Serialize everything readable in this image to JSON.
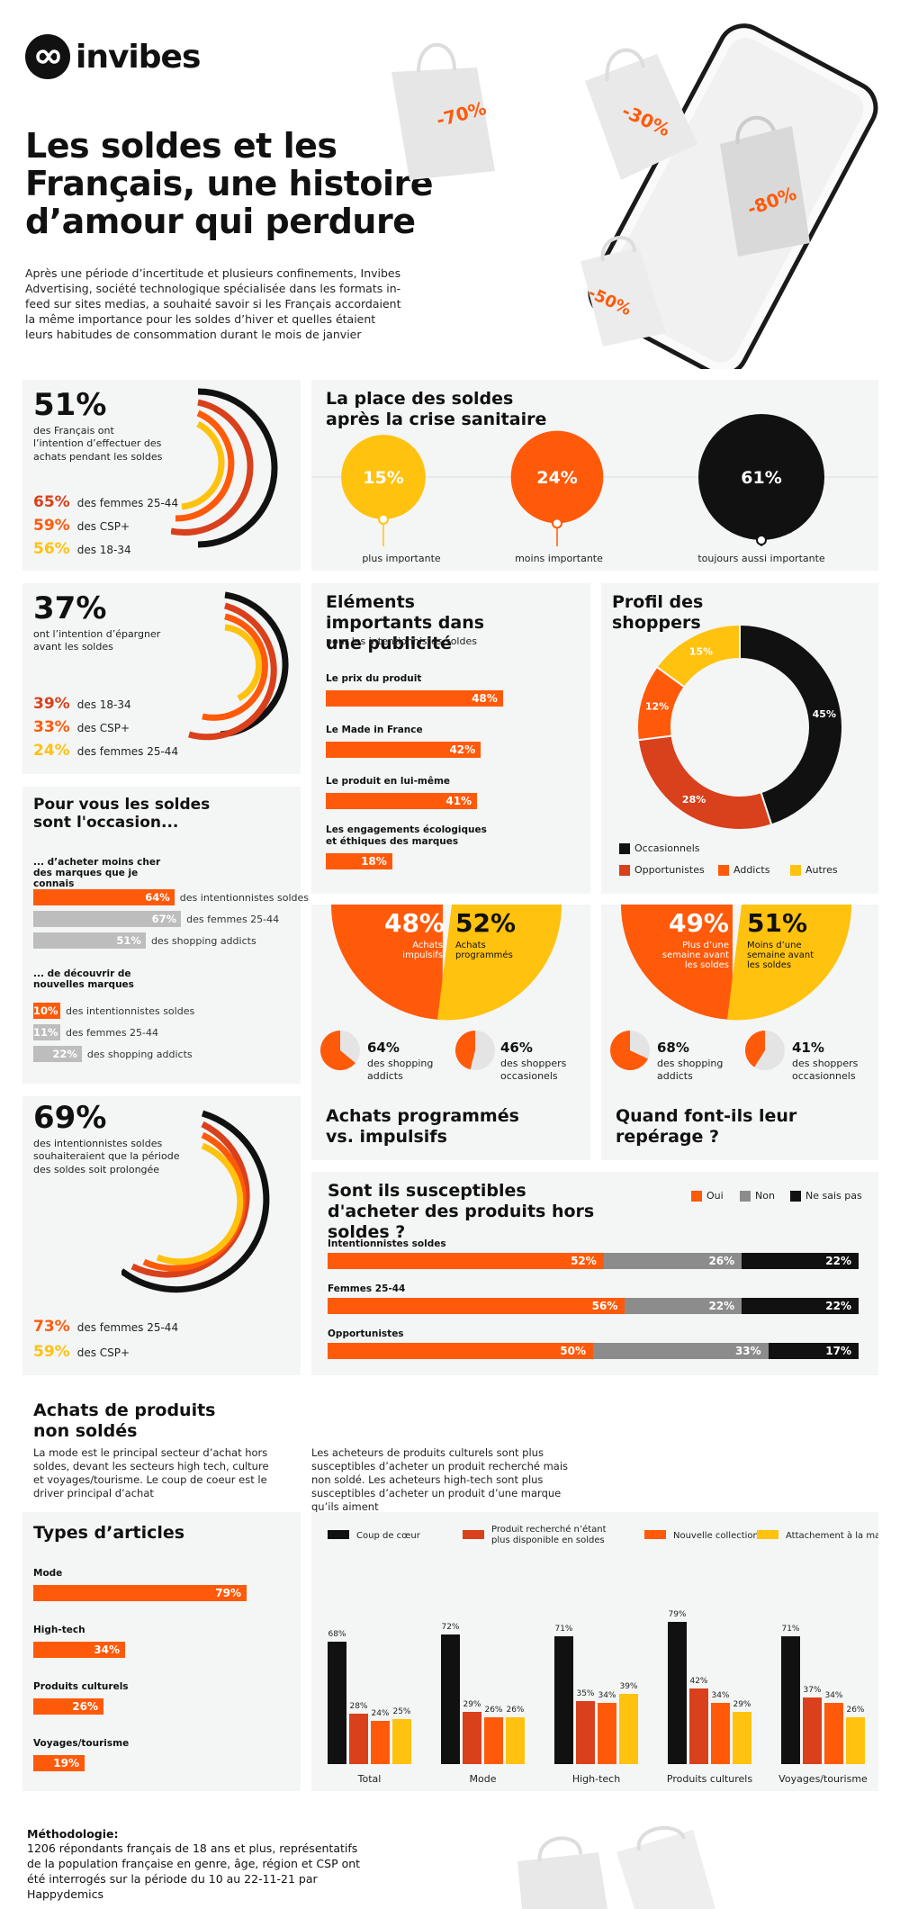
{
  "brand": {
    "name": "invibes"
  },
  "hero": {
    "title": "Les soldes et les Français, une histoire d’amour qui perdure",
    "intro": "Après une période d’incertitude et plusieurs confinements, Invibes Advertising, société technologique spécialisée dans les formats in-feed sur sites medias, a souhaité savoir si les Français accordaient la même importance pour les soldes d’hiver et quelles étaient leurs habitudes de consommation durant le mois de janvier",
    "tags": [
      "-70%",
      "-30%",
      "-80%",
      "-50%"
    ]
  },
  "colors": {
    "black": "#111111",
    "red": "#d9401c",
    "orange": "#ff5a0a",
    "yellow": "#ffc20e",
    "grey": "#8c8c8c",
    "lightgrey": "#bdbdbd"
  },
  "intent": {
    "value": "51%",
    "label": "des Français ont l’intention d’effectuer des achats pendant les soldes",
    "stats": [
      {
        "value": "65%",
        "label": "des femmes 25-44"
      },
      {
        "value": "59%",
        "label": "des CSP+"
      },
      {
        "value": "56%",
        "label": "des 18-34"
      }
    ]
  },
  "place": {
    "title": "La place des soldes après la crise sanitaire",
    "items": [
      {
        "value": "15%",
        "label": "plus importante"
      },
      {
        "value": "24%",
        "label": "moins importante"
      },
      {
        "value": "61%",
        "label": "toujours aussi importante"
      }
    ]
  },
  "save": {
    "value": "37%",
    "label": "ont l’intention d’épargner avant les soldes",
    "stats": [
      {
        "value": "39%",
        "label": "des 18-34"
      },
      {
        "value": "33%",
        "label": "des CSP+"
      },
      {
        "value": "24%",
        "label": "des femmes 25-44"
      }
    ]
  },
  "ad": {
    "title": "Eléments importants dans une publicité",
    "subtitle": "pour les intentionnistes soldes",
    "items": [
      {
        "label": "Le prix du produit",
        "value": "48%"
      },
      {
        "label": "Le Made in France",
        "value": "42%"
      },
      {
        "label": "Le produit en lui-même",
        "value": "41%"
      },
      {
        "label": "Les engagements écologiques et éthiques des marques",
        "value": "18%"
      }
    ]
  },
  "profile": {
    "title": "Profil des shoppers",
    "legend": [
      "Occasionnels",
      "Opportunistes",
      "Addicts",
      "Autres"
    ]
  },
  "occasion": {
    "title": "Pour vous les soldes sont l'occasion...",
    "groups": [
      {
        "title": "... d’acheter moins cher des marques que je connais",
        "rows": [
          {
            "value": "64%",
            "label": "des intentionnistes soldes"
          },
          {
            "value": "67%",
            "label": "des femmes 25-44"
          },
          {
            "value": "51%",
            "label": "des shopping addicts"
          }
        ]
      },
      {
        "title": "... de découvrir de nouvelles marques",
        "rows": [
          {
            "value": "10%",
            "label": "des intentionnistes soldes"
          },
          {
            "value": "11%",
            "label": "des femmes 25-44"
          },
          {
            "value": "22%",
            "label": "des shopping addicts"
          }
        ]
      }
    ]
  },
  "impulse": {
    "title": "Achats programmés vs. impulsifs",
    "left": {
      "value": "48%",
      "label": "Achats impulsifs"
    },
    "right": {
      "value": "52%",
      "label": "Achats programmés"
    },
    "minis": [
      {
        "value": "64%",
        "label": "des shopping addicts"
      },
      {
        "value": "46%",
        "label": "des shoppers occasionels"
      }
    ]
  },
  "scout": {
    "title": "Quand font-ils leur repérage ?",
    "left": {
      "value": "49%",
      "label": "Plus d’une semaine avant les soldes"
    },
    "right": {
      "value": "51%",
      "label": "Moins d’une semaine avant les soldes"
    },
    "minis": [
      {
        "value": "68%",
        "label": "des shopping addicts"
      },
      {
        "value": "41%",
        "label": "des shoppers occasionnels"
      }
    ]
  },
  "extend": {
    "value": "69%",
    "label": "des intentionnistes soldes souhaiteraient que la période des soldes soit prolongée",
    "stats": [
      {
        "value": "73%",
        "label": "des femmes 25-44"
      },
      {
        "value": "59%",
        "label": "des CSP+"
      }
    ]
  },
  "outside": {
    "title": "Sont ils susceptibles d'acheter des produits hors soldes ?",
    "legend": [
      "Oui",
      "Non",
      "Ne sais pas"
    ],
    "rows": [
      {
        "label": "Intentionnistes soldes",
        "values": [
          "52%",
          "26%",
          "22%"
        ]
      },
      {
        "label": "Femmes 25-44",
        "values": [
          "56%",
          "22%",
          "22%"
        ]
      },
      {
        "label": "Opportunistes",
        "values": [
          "50%",
          "33%",
          "17%"
        ]
      }
    ]
  },
  "nonsale": {
    "title": "Achats de produits non soldés",
    "text_left": "La mode est le principal secteur d’achat hors soldes, devant les secteurs high tech, culture et voyages/tourisme. Le coup de coeur est le driver principal d’achat",
    "text_right": "Les acheteurs de produits culturels sont plus susceptibles d’acheter un produit recherché mais non soldé. Les acheteurs high-tech sont plus susceptibles d’acheter un produit d’une marque qu’ils aiment"
  },
  "types": {
    "title": "Types d’articles",
    "items": [
      {
        "label": "Mode",
        "value": "79%"
      },
      {
        "label": "High-tech",
        "value": "34%"
      },
      {
        "label": "Produits culturels",
        "value": "26%"
      },
      {
        "label": "Voyages/tourisme",
        "value": "19%"
      }
    ]
  },
  "methodo": {
    "title": "Méthodologie:",
    "text": "1206 répondants français de 18 ans et plus, représentatifs de la population française en genre, âge, région et CSP ont été interrogés sur la période du 10 au 22-11-21 par Happydemics"
  },
  "chart_data": [
    {
      "type": "pie",
      "title": "La place des soldes après la crise sanitaire",
      "categories": [
        "plus importante",
        "moins importante",
        "toujours aussi importante"
      ],
      "values": [
        15,
        24,
        61
      ]
    },
    {
      "type": "bar",
      "title": "Eléments importants dans une publicité",
      "categories": [
        "Le prix du produit",
        "Le Made in France",
        "Le produit en lui-même",
        "Les engagements écologiques et éthiques des marques"
      ],
      "values": [
        48,
        42,
        41,
        18
      ],
      "xlim": [
        0,
        100
      ]
    },
    {
      "type": "pie",
      "title": "Profil des shoppers",
      "categories": [
        "Occasionnels",
        "Opportunistes",
        "Addicts",
        "Autres"
      ],
      "values": [
        45,
        28,
        12,
        15
      ]
    },
    {
      "type": "pie",
      "title": "Achats programmés vs. impulsifs",
      "categories": [
        "Achats impulsifs",
        "Achats programmés"
      ],
      "values": [
        48,
        52
      ]
    },
    {
      "type": "pie",
      "title": "Quand font-ils leur repérage ?",
      "categories": [
        "Plus d’une semaine avant les soldes",
        "Moins d’une semaine avant les soldes"
      ],
      "values": [
        49,
        51
      ]
    },
    {
      "type": "bar",
      "title": "Sont ils susceptibles d'acheter des produits hors soldes ?",
      "stacked": true,
      "categories": [
        "Intentionnistes soldes",
        "Femmes 25-44",
        "Opportunistes"
      ],
      "series": [
        {
          "name": "Oui",
          "values": [
            52,
            56,
            50
          ]
        },
        {
          "name": "Non",
          "values": [
            26,
            22,
            33
          ]
        },
        {
          "name": "Ne sais pas",
          "values": [
            22,
            22,
            17
          ]
        }
      ]
    },
    {
      "type": "bar",
      "title": "Types d’articles",
      "categories": [
        "Mode",
        "High-tech",
        "Produits culturels",
        "Voyages/tourisme"
      ],
      "values": [
        79,
        34,
        26,
        19
      ],
      "xlim": [
        0,
        100
      ]
    },
    {
      "type": "bar",
      "ylim": [
        0,
        100
      ],
      "categories": [
        "Total",
        "Mode",
        "High-tech",
        "Produits culturels",
        "Voyages/tourisme"
      ],
      "series": [
        {
          "name": "Coup de cœur",
          "values": [
            68,
            72,
            71,
            79,
            71
          ]
        },
        {
          "name": "Produit recherché n’étant plus disponible en soldes",
          "values": [
            28,
            29,
            35,
            42,
            37
          ]
        },
        {
          "name": "Nouvelle collection",
          "values": [
            24,
            26,
            34,
            34,
            34
          ]
        },
        {
          "name": "Attachement à la marque",
          "values": [
            25,
            26,
            39,
            29,
            26
          ]
        }
      ]
    }
  ]
}
